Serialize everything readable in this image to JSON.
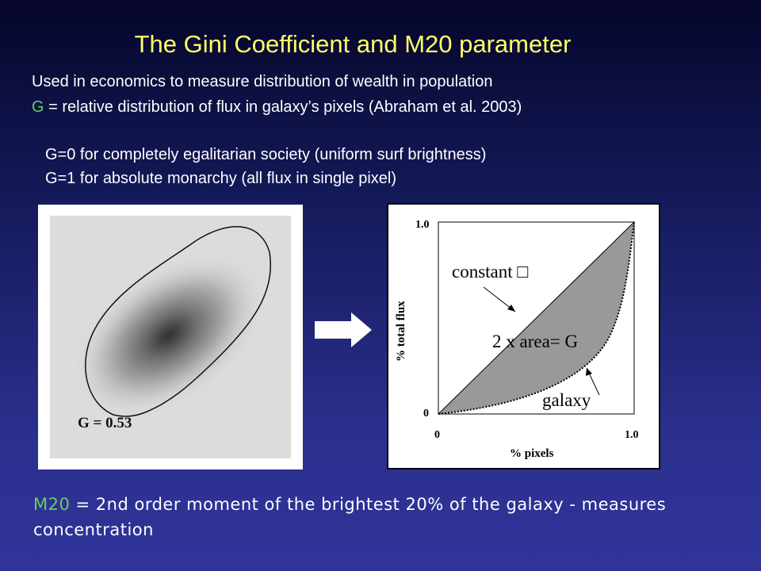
{
  "title": "The Gini Coefficient and M20 parameter",
  "intro": {
    "line1": "Used in economics to measure distribution of wealth in population",
    "line2": {
      "symbol": "G",
      "text": "= relative distribution of flux in galaxy’s pixels (Abraham et al. 2003)"
    }
  },
  "cases": [
    "G=0  for completely egalitarian society (uniform surf brightness)",
    "G=1  for absolute monarchy (all flux in single pixel)"
  ],
  "galaxy_image": {
    "label": "G = 0.53"
  },
  "lorenz_plot": {
    "x_axis_label": "% pixels",
    "y_axis_label": "% total flux",
    "x_ticks": [
      "0",
      "1.0"
    ],
    "y_ticks": [
      "0",
      "1.0"
    ],
    "annotations": {
      "constant": "constant □",
      "area": "2 x area=  G",
      "galaxy": "galaxy"
    }
  },
  "m20": {
    "symbol": "M20",
    "text": "= 2nd order moment of the brightest 20% of the galaxy - measures concentration"
  }
}
